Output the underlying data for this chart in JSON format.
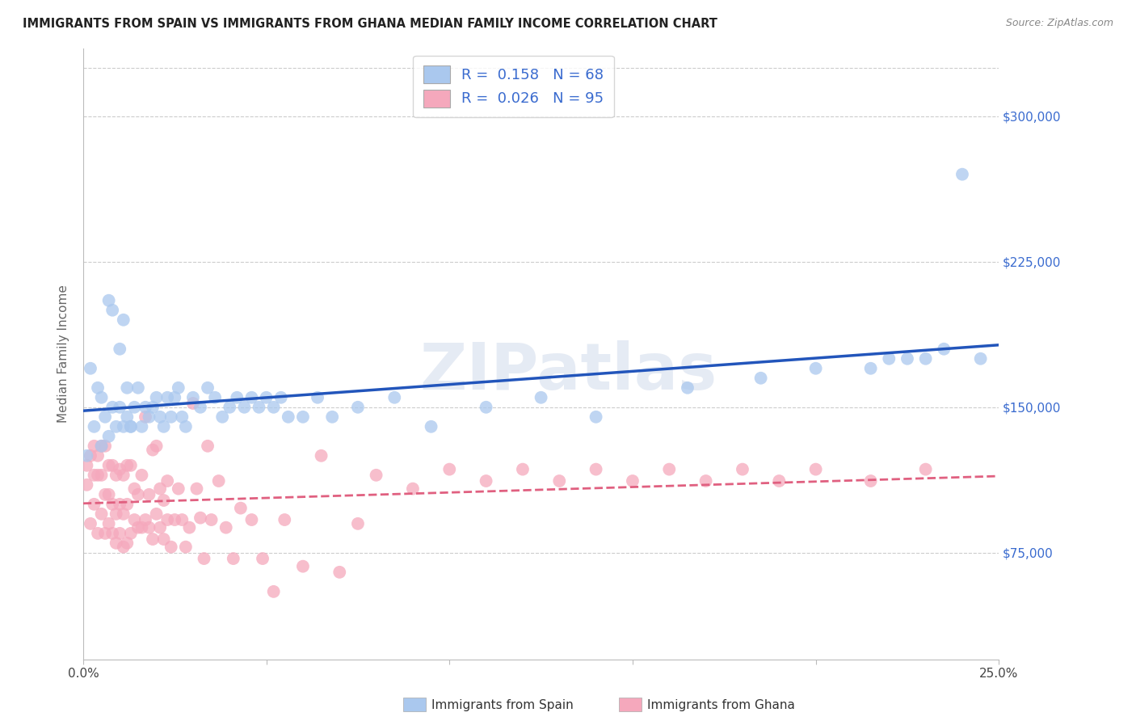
{
  "title": "IMMIGRANTS FROM SPAIN VS IMMIGRANTS FROM GHANA MEDIAN FAMILY INCOME CORRELATION CHART",
  "source": "Source: ZipAtlas.com",
  "ylabel": "Median Family Income",
  "watermark": "ZIPatlas",
  "spain_R": 0.158,
  "spain_N": 68,
  "ghana_R": 0.026,
  "ghana_N": 95,
  "spain_color": "#aac8ee",
  "ghana_color": "#f5a8bc",
  "spain_line_color": "#2255bb",
  "ghana_line_color": "#e06080",
  "background_color": "#ffffff",
  "grid_color": "#cccccc",
  "ytick_values": [
    75000,
    150000,
    225000,
    300000
  ],
  "ylim": [
    20000,
    335000
  ],
  "xlim": [
    0.0,
    0.25
  ],
  "spain_x": [
    0.001,
    0.002,
    0.003,
    0.004,
    0.005,
    0.005,
    0.006,
    0.007,
    0.007,
    0.008,
    0.008,
    0.009,
    0.01,
    0.01,
    0.011,
    0.011,
    0.012,
    0.012,
    0.013,
    0.013,
    0.014,
    0.015,
    0.016,
    0.017,
    0.018,
    0.019,
    0.02,
    0.021,
    0.022,
    0.023,
    0.024,
    0.025,
    0.026,
    0.027,
    0.028,
    0.03,
    0.032,
    0.034,
    0.036,
    0.038,
    0.04,
    0.042,
    0.044,
    0.046,
    0.048,
    0.05,
    0.052,
    0.054,
    0.056,
    0.06,
    0.064,
    0.068,
    0.075,
    0.085,
    0.095,
    0.11,
    0.125,
    0.14,
    0.165,
    0.185,
    0.2,
    0.215,
    0.22,
    0.225,
    0.23,
    0.235,
    0.24,
    0.245
  ],
  "spain_y": [
    125000,
    170000,
    140000,
    160000,
    130000,
    155000,
    145000,
    205000,
    135000,
    200000,
    150000,
    140000,
    150000,
    180000,
    195000,
    140000,
    160000,
    145000,
    140000,
    140000,
    150000,
    160000,
    140000,
    150000,
    145000,
    150000,
    155000,
    145000,
    140000,
    155000,
    145000,
    155000,
    160000,
    145000,
    140000,
    155000,
    150000,
    160000,
    155000,
    145000,
    150000,
    155000,
    150000,
    155000,
    150000,
    155000,
    150000,
    155000,
    145000,
    145000,
    155000,
    145000,
    150000,
    155000,
    140000,
    150000,
    155000,
    145000,
    160000,
    165000,
    170000,
    170000,
    175000,
    175000,
    175000,
    180000,
    270000,
    175000
  ],
  "ghana_x": [
    0.001,
    0.001,
    0.002,
    0.002,
    0.003,
    0.003,
    0.003,
    0.004,
    0.004,
    0.004,
    0.005,
    0.005,
    0.005,
    0.006,
    0.006,
    0.006,
    0.007,
    0.007,
    0.007,
    0.008,
    0.008,
    0.008,
    0.009,
    0.009,
    0.009,
    0.01,
    0.01,
    0.01,
    0.011,
    0.011,
    0.011,
    0.012,
    0.012,
    0.012,
    0.013,
    0.013,
    0.014,
    0.014,
    0.015,
    0.015,
    0.016,
    0.016,
    0.017,
    0.017,
    0.018,
    0.018,
    0.019,
    0.019,
    0.02,
    0.02,
    0.021,
    0.021,
    0.022,
    0.022,
    0.023,
    0.023,
    0.024,
    0.025,
    0.026,
    0.027,
    0.028,
    0.029,
    0.03,
    0.031,
    0.032,
    0.033,
    0.034,
    0.035,
    0.037,
    0.039,
    0.041,
    0.043,
    0.046,
    0.049,
    0.052,
    0.055,
    0.06,
    0.065,
    0.07,
    0.075,
    0.08,
    0.09,
    0.1,
    0.11,
    0.12,
    0.13,
    0.14,
    0.15,
    0.16,
    0.17,
    0.18,
    0.19,
    0.2,
    0.215,
    0.23
  ],
  "ghana_y": [
    110000,
    120000,
    90000,
    125000,
    100000,
    115000,
    130000,
    85000,
    115000,
    125000,
    95000,
    115000,
    130000,
    85000,
    105000,
    130000,
    90000,
    105000,
    120000,
    85000,
    100000,
    120000,
    80000,
    95000,
    115000,
    85000,
    100000,
    118000,
    78000,
    95000,
    115000,
    80000,
    100000,
    120000,
    85000,
    120000,
    92000,
    108000,
    88000,
    105000,
    88000,
    115000,
    92000,
    145000,
    88000,
    105000,
    82000,
    128000,
    95000,
    130000,
    88000,
    108000,
    82000,
    102000,
    92000,
    112000,
    78000,
    92000,
    108000,
    92000,
    78000,
    88000,
    152000,
    108000,
    93000,
    72000,
    130000,
    92000,
    112000,
    88000,
    72000,
    98000,
    92000,
    72000,
    55000,
    92000,
    68000,
    125000,
    65000,
    90000,
    115000,
    108000,
    118000,
    112000,
    118000,
    112000,
    118000,
    112000,
    118000,
    112000,
    118000,
    112000,
    118000,
    112000,
    118000
  ]
}
